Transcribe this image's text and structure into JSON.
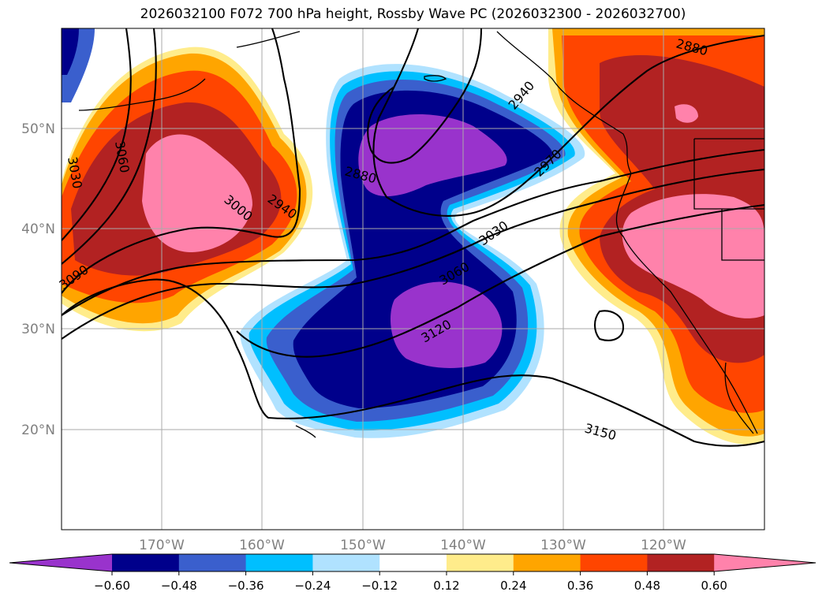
{
  "title": "2026032100 F072 700 hPa height, Rossby Wave PC (2026032300 - 2026032700)",
  "map": {
    "lat_labels": [
      "50°N",
      "40°N",
      "30°N",
      "20°N"
    ],
    "lon_labels": [
      "170°W",
      "160°W",
      "150°W",
      "140°W",
      "130°W",
      "120°W"
    ],
    "contour_labels": [
      "3030",
      "3060",
      "3090",
      "3000",
      "2940",
      "2880",
      "2940",
      "2970",
      "3030",
      "3060",
      "3120",
      "3150",
      "2880"
    ]
  },
  "colorbar": {
    "colors": [
      "#9933cc",
      "#00008b",
      "#3a5fcd",
      "#00bfff",
      "#b0e2ff",
      "#ffffff",
      "#ffec8b",
      "#ffa500",
      "#ff4500",
      "#b22222",
      "#ff82ab"
    ],
    "ticks": [
      "−0.60",
      "−0.48",
      "−0.36",
      "−0.24",
      "−0.12",
      "0.12",
      "0.24",
      "0.36",
      "0.48",
      "0.60"
    ]
  }
}
